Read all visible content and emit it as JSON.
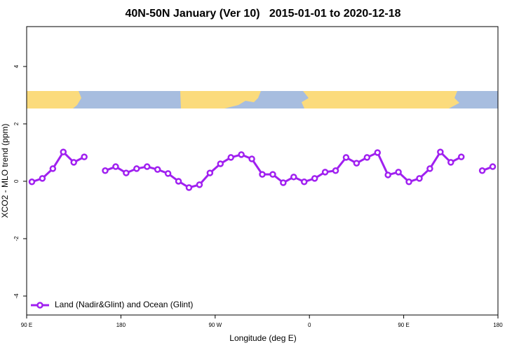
{
  "chart_data": {
    "type": "line",
    "title": "40N-50N January (Ver 10)   2015-01-01 to 2020-12-18",
    "xlabel": "Longitude (deg E)",
    "ylabel": "XCO2 - MLO trend (ppm)",
    "x": [
      95,
      105,
      115,
      125,
      135,
      145,
      155,
      165,
      175,
      185,
      195,
      205,
      215,
      225,
      235,
      245,
      255,
      265,
      275,
      285,
      295,
      305,
      315,
      325,
      335,
      345,
      355,
      365,
      375,
      385,
      395,
      405,
      415,
      425,
      435,
      445,
      455,
      465,
      475,
      485,
      495,
      505,
      515,
      525,
      535
    ],
    "series": [
      {
        "name": "Land (Nadir&Glint) and Ocean (Glint)",
        "color": "#a020f0",
        "values": [
          -0.02,
          0.1,
          0.44,
          1.02,
          0.66,
          0.85,
          null,
          0.37,
          0.51,
          0.29,
          0.44,
          0.51,
          0.41,
          0.27,
          0.0,
          -0.22,
          -0.12,
          0.29,
          0.61,
          0.83,
          0.93,
          0.78,
          0.24,
          0.24,
          -0.05,
          0.15,
          -0.02,
          0.1,
          0.32,
          0.37,
          0.83,
          0.63,
          0.83,
          1.0,
          0.22,
          0.32,
          -0.02,
          0.1,
          0.44,
          1.02,
          0.66,
          0.85,
          null,
          0.37,
          0.51
        ]
      }
    ],
    "xlim": [
      90,
      540
    ],
    "xticks": [
      {
        "value": 90,
        "label": "90 E"
      },
      {
        "value": 180,
        "label": "180"
      },
      {
        "value": 270,
        "label": "90 W"
      },
      {
        "value": 360,
        "label": "0"
      },
      {
        "value": 450,
        "label": "90 E"
      },
      {
        "value": 540,
        "label": "180"
      }
    ],
    "ylim": [
      -4.66,
      5.39
    ],
    "yticks": [
      -4,
      -2,
      0,
      2,
      4
    ],
    "legend": "bottom-left"
  }
}
